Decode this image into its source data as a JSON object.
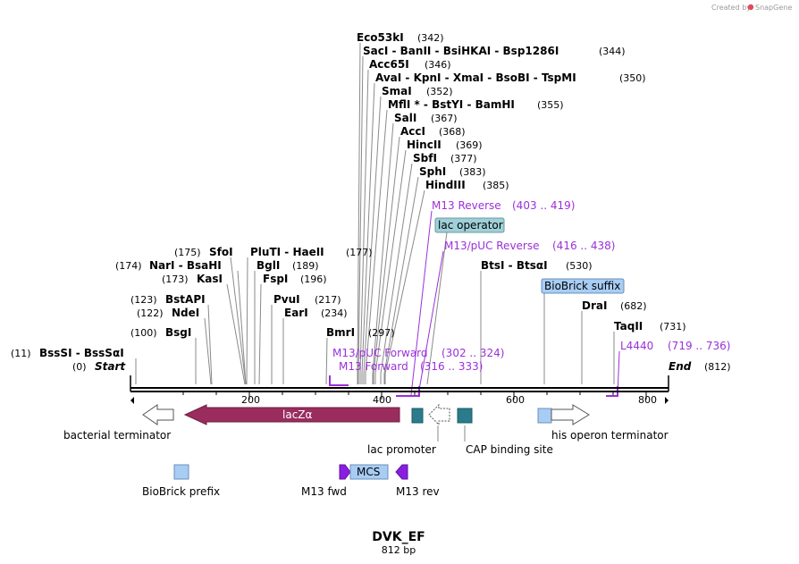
{
  "watermark": {
    "prefix": "Created by",
    "brand": "SnapGene"
  },
  "map": {
    "name": "DVK_EF",
    "size": "812 bp"
  },
  "ticks": [
    "200",
    "400",
    "600",
    "800"
  ],
  "ends": {
    "start_label": "Start",
    "start_pos": "(0)",
    "end_label": "End",
    "end_pos": "(812)"
  },
  "sites": {
    "eco53ki": {
      "name": "Eco53kI",
      "pos": "(342)"
    },
    "saci": {
      "name": "SacI  - BanII  - BsiHKAI  - Bsp1286I",
      "pos": "(344)"
    },
    "acc65i": {
      "name": "Acc65I",
      "pos": "(346)"
    },
    "avai": {
      "name": "AvaI  - KpnI  - XmaI  - BsoBI  - TspMI",
      "pos": "(350)"
    },
    "smai": {
      "name": "SmaI",
      "pos": "(352)"
    },
    "mfli": {
      "name": "MflI * - BstYI  - BamHI",
      "pos": "(355)"
    },
    "sali": {
      "name": "SalI",
      "pos": "(367)"
    },
    "acci": {
      "name": "AccI",
      "pos": "(368)"
    },
    "hincii": {
      "name": "HincII",
      "pos": "(369)"
    },
    "sbfi": {
      "name": "SbfI",
      "pos": "(377)"
    },
    "sphi": {
      "name": "SphI",
      "pos": "(383)"
    },
    "hindiii": {
      "name": "HindIII",
      "pos": "(385)"
    },
    "sfoi": {
      "name": "SfoI",
      "pos": "(175)"
    },
    "plutI": {
      "name": "PluTI  - HaeII",
      "pos": "(177)"
    },
    "nari": {
      "name": "NarI  - BsaHI",
      "pos": "(174)"
    },
    "bgli": {
      "name": "BglI",
      "pos": "(189)"
    },
    "kasi": {
      "name": "KasI",
      "pos": "(173)"
    },
    "fspi": {
      "name": "FspI",
      "pos": "(196)"
    },
    "bstapi": {
      "name": "BstAPI",
      "pos": "(123)"
    },
    "pvui": {
      "name": "PvuI",
      "pos": "(217)"
    },
    "ndei": {
      "name": "NdeI",
      "pos": "(122)"
    },
    "eari": {
      "name": "EarI",
      "pos": "(234)"
    },
    "bsgi": {
      "name": "BsgI",
      "pos": "(100)"
    },
    "bmri": {
      "name": "BmrI",
      "pos": "(297)"
    },
    "bsssi": {
      "name": "BssSI  - BssSαI",
      "pos": "(11)"
    },
    "btsi": {
      "name": "BtsI  - BtsαI",
      "pos": "(530)"
    },
    "drai": {
      "name": "DraI",
      "pos": "(682)"
    },
    "taqii": {
      "name": "TaqII",
      "pos": "(731)"
    }
  },
  "primers": {
    "m13_reverse": {
      "name": "M13 Reverse",
      "range": "(403 .. 419)"
    },
    "m13_puc_reverse": {
      "name": "M13/pUC Reverse",
      "range": "(416 .. 438)"
    },
    "m13_puc_forward": {
      "name": "M13/pUC Forward",
      "range": "(302 .. 324)"
    },
    "m13_forward": {
      "name": "M13 Forward",
      "range": "(316 .. 333)"
    },
    "l4440": {
      "name": "L4440",
      "range": "(719 .. 736)"
    }
  },
  "features": {
    "lac_operator": "lac operator",
    "biobrick_suffix": "BioBrick suffix",
    "lacz": "lacZα",
    "bacterial_terminator": "bacterial terminator",
    "lac_promoter": "lac promoter",
    "cap_site": "CAP binding site",
    "his_terminator": "his operon terminator",
    "biobrick_prefix": "BioBrick prefix",
    "m13_fwd": "M13 fwd",
    "mcs": "MCS",
    "m13_rev": "M13 rev"
  },
  "colors": {
    "lacz": "#9a2d5e",
    "cap": "#2a7b8c",
    "biobrick": "#a8cdf5",
    "lac_operator": "#9fd0d8",
    "primer": "#9b30d9",
    "m13_arrow": "#8a1ee0"
  }
}
